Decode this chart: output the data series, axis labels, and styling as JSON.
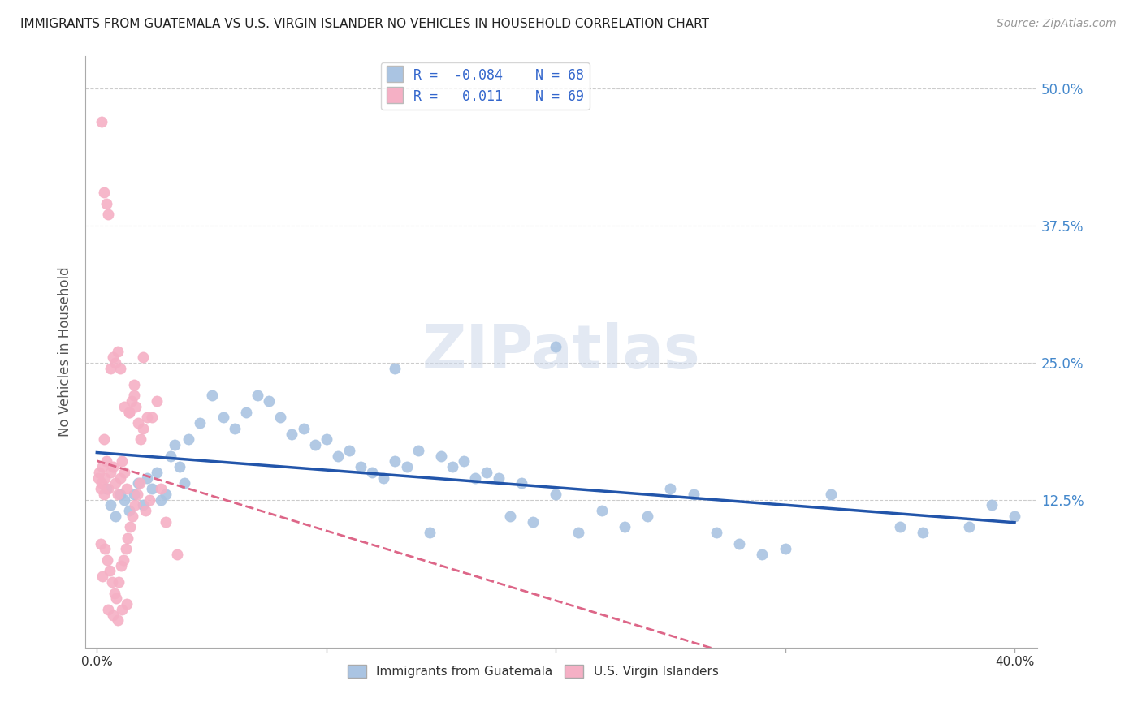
{
  "title": "IMMIGRANTS FROM GUATEMALA VS U.S. VIRGIN ISLANDER NO VEHICLES IN HOUSEHOLD CORRELATION CHART",
  "source": "Source: ZipAtlas.com",
  "ylabel": "No Vehicles in Household",
  "x_tick_labels": [
    "0.0%",
    "",
    "",
    "",
    "40.0%"
  ],
  "x_tick_values": [
    0.0,
    10.0,
    20.0,
    30.0,
    40.0
  ],
  "y_tick_labels": [
    "12.5%",
    "25.0%",
    "37.5%",
    "50.0%"
  ],
  "y_tick_values": [
    12.5,
    25.0,
    37.5,
    50.0
  ],
  "xlim": [
    -0.5,
    41.0
  ],
  "ylim": [
    -1.0,
    53.0
  ],
  "blue_R": -0.084,
  "blue_N": 68,
  "pink_R": 0.011,
  "pink_N": 69,
  "blue_color": "#aac4e2",
  "pink_color": "#f5b0c5",
  "trend_blue": "#2255aa",
  "trend_pink": "#dd6688",
  "background": "#ffffff",
  "grid_color": "#cccccc",
  "title_color": "#222222",
  "right_tick_color": "#4488cc",
  "legend_text_color": "#3366cc",
  "blue_scatter_x": [
    0.4,
    0.6,
    0.8,
    1.0,
    1.2,
    1.4,
    1.6,
    1.8,
    2.0,
    2.2,
    2.4,
    2.6,
    2.8,
    3.0,
    3.2,
    3.4,
    3.6,
    3.8,
    4.0,
    4.5,
    5.0,
    5.5,
    6.0,
    6.5,
    7.0,
    7.5,
    8.0,
    8.5,
    9.0,
    9.5,
    10.0,
    10.5,
    11.0,
    11.5,
    12.0,
    12.5,
    13.0,
    13.5,
    14.0,
    14.5,
    15.0,
    15.5,
    16.0,
    16.5,
    17.0,
    17.5,
    18.0,
    18.5,
    19.0,
    20.0,
    21.0,
    22.0,
    23.0,
    24.0,
    25.0,
    26.0,
    27.0,
    28.0,
    29.0,
    30.0,
    32.0,
    35.0,
    36.0,
    38.0,
    39.0,
    40.0,
    20.0,
    13.0
  ],
  "blue_scatter_y": [
    13.5,
    12.0,
    11.0,
    13.0,
    12.5,
    11.5,
    13.0,
    14.0,
    12.0,
    14.5,
    13.5,
    15.0,
    12.5,
    13.0,
    16.5,
    17.5,
    15.5,
    14.0,
    18.0,
    19.5,
    22.0,
    20.0,
    19.0,
    20.5,
    22.0,
    21.5,
    20.0,
    18.5,
    19.0,
    17.5,
    18.0,
    16.5,
    17.0,
    15.5,
    15.0,
    14.5,
    16.0,
    15.5,
    17.0,
    9.5,
    16.5,
    15.5,
    16.0,
    14.5,
    15.0,
    14.5,
    11.0,
    14.0,
    10.5,
    13.0,
    9.5,
    11.5,
    10.0,
    11.0,
    13.5,
    13.0,
    9.5,
    8.5,
    7.5,
    8.0,
    13.0,
    10.0,
    9.5,
    10.0,
    12.0,
    11.0,
    26.5,
    24.5
  ],
  "pink_scatter_x": [
    0.05,
    0.1,
    0.15,
    0.2,
    0.25,
    0.3,
    0.35,
    0.4,
    0.5,
    0.6,
    0.7,
    0.8,
    0.9,
    1.0,
    1.1,
    1.2,
    1.3,
    1.4,
    1.5,
    1.6,
    1.7,
    1.8,
    1.9,
    2.0,
    2.2,
    2.4,
    2.6,
    2.8,
    3.0,
    3.5,
    0.15,
    0.25,
    0.35,
    0.45,
    0.55,
    0.65,
    0.75,
    0.85,
    0.95,
    1.05,
    1.15,
    1.25,
    1.35,
    1.45,
    1.55,
    1.65,
    1.75,
    1.85,
    2.1,
    2.3,
    0.2,
    0.3,
    0.4,
    0.5,
    0.6,
    0.7,
    0.8,
    0.9,
    1.0,
    1.2,
    1.4,
    1.6,
    2.0,
    0.3,
    0.5,
    0.7,
    0.9,
    1.1,
    1.3
  ],
  "pink_scatter_y": [
    14.5,
    15.0,
    13.5,
    14.0,
    15.5,
    13.0,
    14.5,
    16.0,
    13.5,
    15.0,
    15.5,
    14.0,
    13.0,
    14.5,
    16.0,
    15.0,
    13.5,
    20.5,
    21.5,
    22.0,
    21.0,
    19.5,
    18.0,
    19.0,
    20.0,
    20.0,
    21.5,
    13.5,
    10.5,
    7.5,
    8.5,
    5.5,
    8.0,
    7.0,
    6.0,
    5.0,
    4.0,
    3.5,
    5.0,
    6.5,
    7.0,
    8.0,
    9.0,
    10.0,
    11.0,
    12.0,
    13.0,
    14.0,
    11.5,
    12.5,
    47.0,
    40.5,
    39.5,
    38.5,
    24.5,
    25.5,
    25.0,
    26.0,
    24.5,
    21.0,
    20.5,
    23.0,
    25.5,
    18.0,
    2.5,
    2.0,
    1.5,
    2.5,
    3.0
  ]
}
